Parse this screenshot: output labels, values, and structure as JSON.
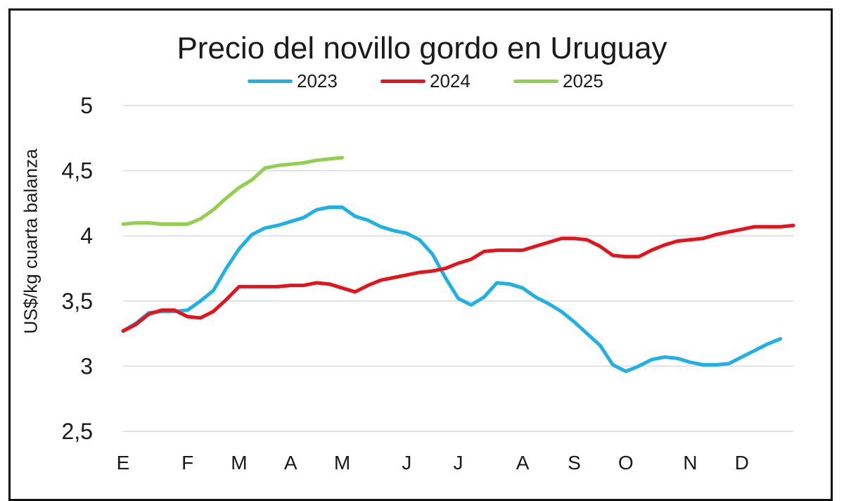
{
  "chart_data": {
    "type": "line",
    "title": "Precio del novillo gordo en Uruguay",
    "xlabel": "",
    "ylabel": "US$/kg cuarta balanza",
    "ylim": [
      2.5,
      5
    ],
    "yticks": [
      {
        "value": 2.5,
        "label": "2,5"
      },
      {
        "value": 3,
        "label": "3"
      },
      {
        "value": 3.5,
        "label": "3,5"
      },
      {
        "value": 4,
        "label": "4"
      },
      {
        "value": 4.5,
        "label": "4,5"
      },
      {
        "value": 5,
        "label": "5"
      }
    ],
    "grid": true,
    "legend": "top-center",
    "xlim": [
      0,
      52
    ],
    "xticks": [
      {
        "x": 0,
        "label": "E"
      },
      {
        "x": 5,
        "label": "F"
      },
      {
        "x": 9,
        "label": "M"
      },
      {
        "x": 13,
        "label": "A"
      },
      {
        "x": 17,
        "label": "M"
      },
      {
        "x": 22,
        "label": "J"
      },
      {
        "x": 26,
        "label": "J"
      },
      {
        "x": 31,
        "label": "A"
      },
      {
        "x": 35,
        "label": "S"
      },
      {
        "x": 39,
        "label": "O"
      },
      {
        "x": 44,
        "label": "N"
      },
      {
        "x": 48,
        "label": "D"
      }
    ],
    "series": [
      {
        "name": "2023",
        "color": "#1fb0e6",
        "x": [
          0,
          1,
          2,
          3,
          4,
          5,
          6,
          7,
          8,
          9,
          10,
          11,
          12,
          13,
          14,
          15,
          16,
          17,
          18,
          19,
          20,
          21,
          22,
          23,
          24,
          25,
          26,
          27,
          28,
          29,
          30,
          31,
          32,
          33,
          34,
          35,
          36,
          37,
          38,
          39,
          40,
          41,
          42,
          43,
          44,
          45,
          46,
          47,
          48,
          49,
          50,
          51
        ],
        "values": [
          3.27,
          3.33,
          3.41,
          3.42,
          3.42,
          3.43,
          3.5,
          3.58,
          3.75,
          3.9,
          4.01,
          4.06,
          4.08,
          4.11,
          4.14,
          4.2,
          4.22,
          4.22,
          4.15,
          4.12,
          4.07,
          4.04,
          4.02,
          3.97,
          3.86,
          3.68,
          3.52,
          3.47,
          3.53,
          3.64,
          3.63,
          3.6,
          3.53,
          3.48,
          3.42,
          3.34,
          3.25,
          3.16,
          3.01,
          2.96,
          3.0,
          3.05,
          3.07,
          3.06,
          3.03,
          3.01,
          3.01,
          3.02,
          3.07,
          3.12,
          3.17,
          3.21
        ]
      },
      {
        "name": "2024",
        "color": "#e5141b",
        "x": [
          0,
          1,
          2,
          3,
          4,
          5,
          6,
          7,
          8,
          9,
          10,
          11,
          12,
          13,
          14,
          15,
          16,
          17,
          18,
          19,
          20,
          21,
          22,
          23,
          24,
          25,
          26,
          27,
          28,
          29,
          30,
          31,
          32,
          33,
          34,
          35,
          36,
          37,
          38,
          39,
          40,
          41,
          42,
          43,
          44,
          45,
          46,
          47,
          48,
          49,
          50,
          51,
          52
        ],
        "values": [
          3.27,
          3.32,
          3.4,
          3.43,
          3.43,
          3.38,
          3.37,
          3.42,
          3.51,
          3.61,
          3.61,
          3.61,
          3.61,
          3.62,
          3.62,
          3.64,
          3.63,
          3.6,
          3.57,
          3.62,
          3.66,
          3.68,
          3.7,
          3.72,
          3.73,
          3.75,
          3.79,
          3.82,
          3.88,
          3.89,
          3.89,
          3.89,
          3.92,
          3.95,
          3.98,
          3.98,
          3.97,
          3.92,
          3.85,
          3.84,
          3.84,
          3.89,
          3.93,
          3.96,
          3.97,
          3.98,
          4.01,
          4.03,
          4.05,
          4.07,
          4.07,
          4.07,
          4.08
        ]
      },
      {
        "name": "2025",
        "color": "#92cf4f",
        "x": [
          0,
          1,
          2,
          3,
          4,
          5,
          6,
          7,
          8,
          9,
          10,
          11,
          12,
          13,
          14,
          15,
          16,
          17
        ],
        "values": [
          4.09,
          4.1,
          4.1,
          4.09,
          4.09,
          4.09,
          4.13,
          4.2,
          4.29,
          4.37,
          4.43,
          4.52,
          4.54,
          4.55,
          4.56,
          4.58,
          4.59,
          4.6
        ]
      }
    ]
  }
}
